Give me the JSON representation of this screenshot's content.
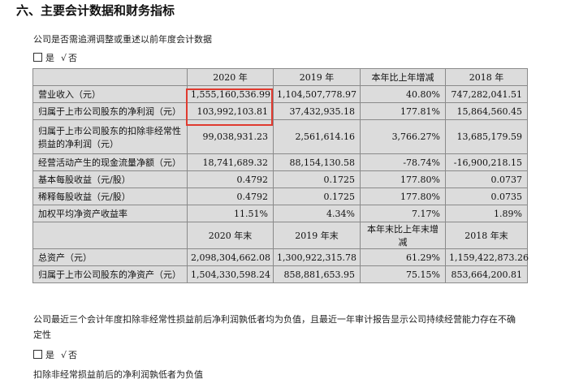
{
  "section_title": "六、主要会计数据和财务指标",
  "q1_text": "公司是否需追溯调整或重述以前年度会计数据",
  "yes_label": "是",
  "check_mark": "√",
  "no_label": "否",
  "table1": {
    "headers": [
      "",
      "2020 年",
      "2019 年",
      "本年比上年增减",
      "2018 年"
    ],
    "rows": [
      [
        "营业收入（元）",
        "1,555,160,536.99",
        "1,104,507,778.97",
        "40.80%",
        "747,282,041.51"
      ],
      [
        "归属于上市公司股东的净利润（元）",
        "103,992,103.81",
        "37,432,935.18",
        "177.81%",
        "15,864,560.45"
      ],
      [
        "归属于上市公司股东的扣除非经常性损益的净利润（元）",
        "99,038,931.23",
        "2,561,614.16",
        "3,766.27%",
        "13,685,179.59"
      ],
      [
        "经营活动产生的现金流量净额（元）",
        "18,741,689.32",
        "88,154,130.58",
        "-78.74%",
        "-16,900,218.15"
      ],
      [
        "基本每股收益（元/股）",
        "0.4792",
        "0.1725",
        "177.80%",
        "0.0737"
      ],
      [
        "稀释每股收益（元/股）",
        "0.4792",
        "0.1725",
        "177.80%",
        "0.0735"
      ],
      [
        "加权平均净资产收益率",
        "11.51%",
        "4.34%",
        "7.17%",
        "1.89%"
      ]
    ]
  },
  "table2": {
    "headers": [
      "",
      "2020 年末",
      "2019 年末",
      "本年末比上年末增减",
      "2018 年末"
    ],
    "rows": [
      [
        "总资产（元）",
        "2,098,304,662.08",
        "1,300,922,315.78",
        "61.29%",
        "1,159,422,873.26"
      ],
      [
        "归属于上市公司股东的净资产（元）",
        "1,504,330,598.24",
        "858,881,653.95",
        "75.15%",
        "853,664,200.81"
      ]
    ]
  },
  "q2_text_line1": "公司最近三个会计年度扣除非经常性损益前后净利润孰低者均为负值，且最近一年审计报告显示公司持续经营能力存在不确",
  "q2_text_line2": "定性",
  "footer_text": "扣除非经常损益前后的净利润孰低者为负值"
}
